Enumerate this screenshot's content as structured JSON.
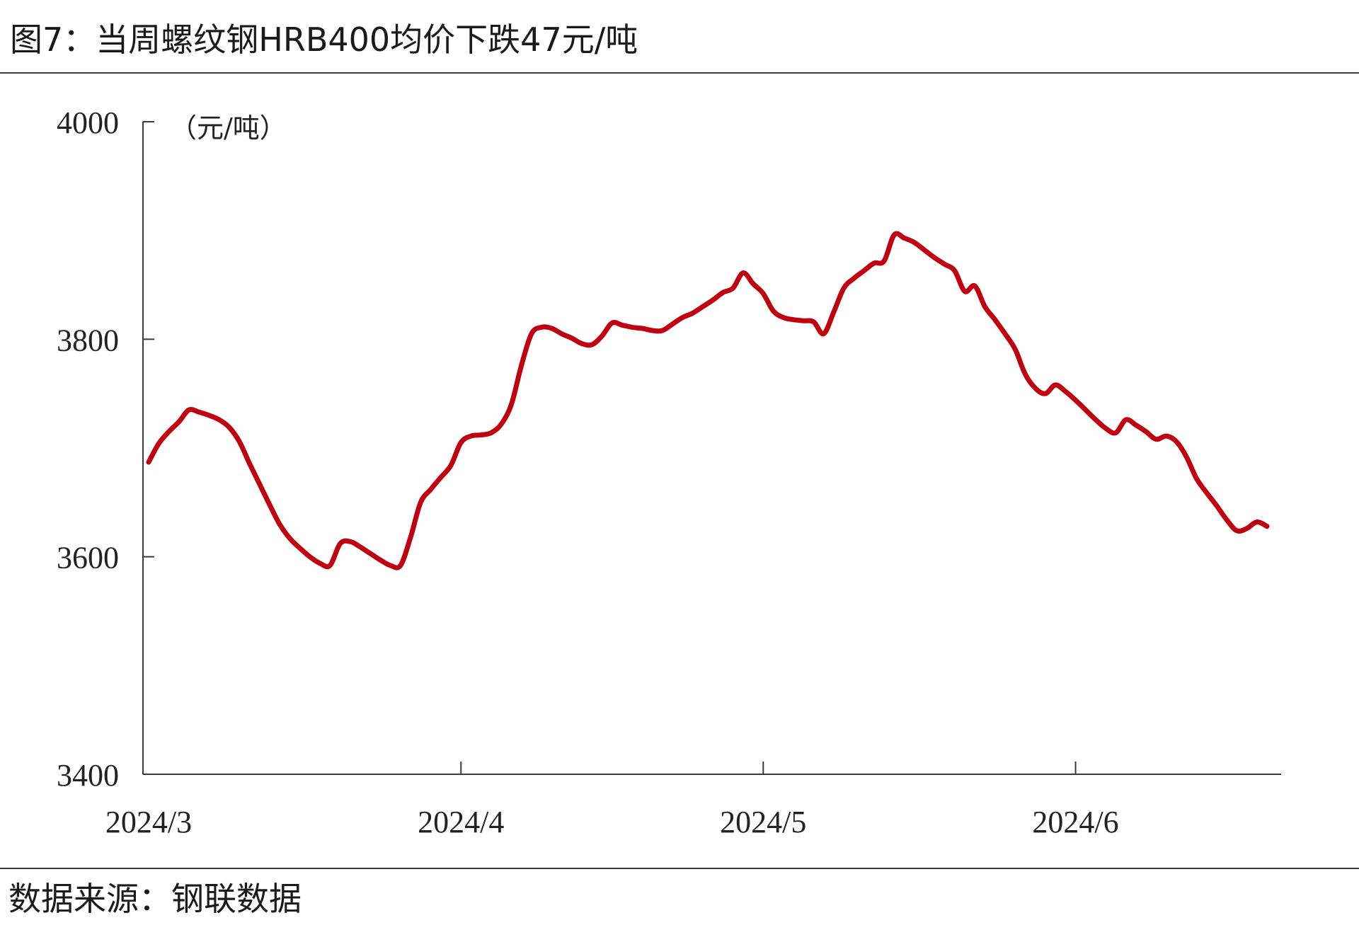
{
  "title": "图7：当周螺纹钢HRB400均价下跌47元/吨",
  "source": "数据来源：钢联数据",
  "colors": {
    "series": "#c0000f",
    "axis": "#3a3a3a"
  },
  "chart_data": {
    "type": "line",
    "title": "图7：当周螺纹钢HRB400均价下跌47元/吨",
    "ylabel": "（元/吨）",
    "xlabel": "",
    "ylim": [
      3400,
      4000
    ],
    "yticks": [
      3400,
      3600,
      3800,
      4000
    ],
    "xlim": [
      "2024-03-01",
      "2024-06-17"
    ],
    "xticks": [
      {
        "date": "2024-03-01",
        "label": "2024/3"
      },
      {
        "date": "2024-04-01",
        "label": "2024/4"
      },
      {
        "date": "2024-05-01",
        "label": "2024/5"
      },
      {
        "date": "2024-06-01",
        "label": "2024/6"
      }
    ],
    "grid": false,
    "legend": "none",
    "series": [
      {
        "data": [
          [
            "2024-03-01",
            3687
          ],
          [
            "2024-03-02",
            3704
          ],
          [
            "2024-03-03",
            3715
          ],
          [
            "2024-03-04",
            3724
          ],
          [
            "2024-03-05",
            3735
          ],
          [
            "2024-03-06",
            3733
          ],
          [
            "2024-03-07",
            3730
          ],
          [
            "2024-03-08",
            3726
          ],
          [
            "2024-03-09",
            3719
          ],
          [
            "2024-03-10",
            3706
          ],
          [
            "2024-03-11",
            3686
          ],
          [
            "2024-03-12",
            3667
          ],
          [
            "2024-03-13",
            3648
          ],
          [
            "2024-03-14",
            3630
          ],
          [
            "2024-03-15",
            3617
          ],
          [
            "2024-03-16",
            3608
          ],
          [
            "2024-03-17",
            3600
          ],
          [
            "2024-03-18",
            3594
          ],
          [
            "2024-03-19",
            3592
          ],
          [
            "2024-03-20",
            3612
          ],
          [
            "2024-03-21",
            3614
          ],
          [
            "2024-03-22",
            3609
          ],
          [
            "2024-03-23",
            3603
          ],
          [
            "2024-03-24",
            3597
          ],
          [
            "2024-03-25",
            3592
          ],
          [
            "2024-03-26",
            3592
          ],
          [
            "2024-03-27",
            3618
          ],
          [
            "2024-03-28",
            3650
          ],
          [
            "2024-03-29",
            3662
          ],
          [
            "2024-03-30",
            3673
          ],
          [
            "2024-03-31",
            3684
          ],
          [
            "2024-04-01",
            3705
          ],
          [
            "2024-04-02",
            3711
          ],
          [
            "2024-04-03",
            3712
          ],
          [
            "2024-04-04",
            3714
          ],
          [
            "2024-04-05",
            3722
          ],
          [
            "2024-04-06",
            3740
          ],
          [
            "2024-04-07",
            3776
          ],
          [
            "2024-04-08",
            3805
          ],
          [
            "2024-04-09",
            3811
          ],
          [
            "2024-04-10",
            3810
          ],
          [
            "2024-04-11",
            3805
          ],
          [
            "2024-04-12",
            3801
          ],
          [
            "2024-04-13",
            3796
          ],
          [
            "2024-04-14",
            3795
          ],
          [
            "2024-04-15",
            3803
          ],
          [
            "2024-04-16",
            3815
          ],
          [
            "2024-04-17",
            3813
          ],
          [
            "2024-04-18",
            3811
          ],
          [
            "2024-04-19",
            3810
          ],
          [
            "2024-04-20",
            3808
          ],
          [
            "2024-04-21",
            3808
          ],
          [
            "2024-04-22",
            3814
          ],
          [
            "2024-04-23",
            3820
          ],
          [
            "2024-04-24",
            3824
          ],
          [
            "2024-04-25",
            3830
          ],
          [
            "2024-04-26",
            3836
          ],
          [
            "2024-04-27",
            3843
          ],
          [
            "2024-04-28",
            3847
          ],
          [
            "2024-04-29",
            3861
          ],
          [
            "2024-04-30",
            3851
          ],
          [
            "2024-05-01",
            3842
          ],
          [
            "2024-05-02",
            3826
          ],
          [
            "2024-05-03",
            3820
          ],
          [
            "2024-05-04",
            3818
          ],
          [
            "2024-05-05",
            3817
          ],
          [
            "2024-05-06",
            3816
          ],
          [
            "2024-05-07",
            3805
          ],
          [
            "2024-05-08",
            3825
          ],
          [
            "2024-05-09",
            3847
          ],
          [
            "2024-05-10",
            3856
          ],
          [
            "2024-05-11",
            3863
          ],
          [
            "2024-05-12",
            3870
          ],
          [
            "2024-05-13",
            3872
          ],
          [
            "2024-05-14",
            3896
          ],
          [
            "2024-05-15",
            3893
          ],
          [
            "2024-05-16",
            3889
          ],
          [
            "2024-05-17",
            3882
          ],
          [
            "2024-05-18",
            3875
          ],
          [
            "2024-05-19",
            3869
          ],
          [
            "2024-05-20",
            3863
          ],
          [
            "2024-05-21",
            3844
          ],
          [
            "2024-05-22",
            3849
          ],
          [
            "2024-05-23",
            3830
          ],
          [
            "2024-05-24",
            3818
          ],
          [
            "2024-05-25",
            3805
          ],
          [
            "2024-05-26",
            3791
          ],
          [
            "2024-05-27",
            3768
          ],
          [
            "2024-05-28",
            3755
          ],
          [
            "2024-05-29",
            3750
          ],
          [
            "2024-05-30",
            3758
          ],
          [
            "2024-05-31",
            3752
          ],
          [
            "2024-06-01",
            3744
          ],
          [
            "2024-06-02",
            3735
          ],
          [
            "2024-06-03",
            3726
          ],
          [
            "2024-06-04",
            3718
          ],
          [
            "2024-06-05",
            3714
          ],
          [
            "2024-06-06",
            3726
          ],
          [
            "2024-06-07",
            3721
          ],
          [
            "2024-06-08",
            3715
          ],
          [
            "2024-06-09",
            3708
          ],
          [
            "2024-06-10",
            3711
          ],
          [
            "2024-06-11",
            3706
          ],
          [
            "2024-06-12",
            3692
          ],
          [
            "2024-06-13",
            3672
          ],
          [
            "2024-06-14",
            3659
          ],
          [
            "2024-06-15",
            3647
          ],
          [
            "2024-06-16",
            3634
          ],
          [
            "2024-06-17",
            3624
          ],
          [
            "2024-06-18",
            3626
          ],
          [
            "2024-06-19",
            3632
          ],
          [
            "2024-06-20",
            3628
          ]
        ]
      }
    ]
  }
}
